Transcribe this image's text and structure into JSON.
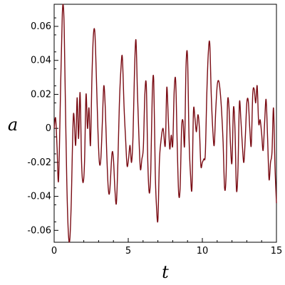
{
  "chart_data": {
    "type": "line",
    "title": "",
    "xlabel": "t",
    "ylabel": "a",
    "xlim": [
      0,
      15
    ],
    "ylim": [
      -0.067,
      0.073
    ],
    "grid": false,
    "legend": "none",
    "xticks": [
      0,
      5,
      10,
      15
    ],
    "xtick_labels": [
      "0",
      "5",
      "10",
      "15"
    ],
    "yticks": [
      -0.06,
      -0.04,
      -0.02,
      0,
      0.02,
      0.04,
      0.06
    ],
    "ytick_labels": [
      "-0.06",
      "-0.04",
      "-0.02",
      "0",
      "0.02",
      "0.04",
      "0.06"
    ],
    "series": [
      {
        "color": "#7a0c14",
        "x": [
          0,
          0.1,
          0.2,
          0.3,
          0.45,
          0.55,
          0.62,
          0.68,
          0.75,
          0.85,
          0.95,
          1.05,
          1.15,
          1.3,
          1.45,
          1.55,
          1.65,
          1.75,
          1.85,
          1.95,
          2.05,
          2.15,
          2.25,
          2.35,
          2.45,
          2.55,
          2.65,
          2.75,
          2.85,
          2.95,
          3.05,
          3.15,
          3.25,
          3.35,
          3.45,
          3.55,
          3.65,
          3.75,
          3.9,
          4.0,
          4.1,
          4.2,
          4.3,
          4.4,
          4.5,
          4.6,
          4.72,
          4.82,
          4.92,
          5.02,
          5.12,
          5.22,
          5.32,
          5.42,
          5.52,
          5.62,
          5.72,
          5.82,
          5.92,
          6.02,
          6.12,
          6.22,
          6.32,
          6.42,
          6.52,
          6.62,
          6.72,
          6.82,
          6.9,
          7.0,
          7.1,
          7.2,
          7.35,
          7.5,
          7.6,
          7.7,
          7.8,
          7.9,
          8.0,
          8.1,
          8.2,
          8.3,
          8.4,
          8.5,
          8.6,
          8.7,
          8.8,
          8.9,
          9.0,
          9.1,
          9.2,
          9.3,
          9.4,
          9.5,
          9.6,
          9.7,
          9.8,
          9.9,
          10.0,
          10.1,
          10.2,
          10.3,
          10.4,
          10.5,
          10.6,
          10.7,
          10.8,
          10.9,
          11.0,
          11.1,
          11.2,
          11.3,
          11.4,
          11.5,
          11.6,
          11.7,
          11.8,
          11.9,
          12.0,
          12.1,
          12.2,
          12.3,
          12.4,
          12.5,
          12.6,
          12.7,
          12.8,
          12.9,
          13.0,
          13.1,
          13.2,
          13.3,
          13.4,
          13.5,
          13.6,
          13.7,
          13.8,
          13.9,
          14.0,
          14.1,
          14.2,
          14.3,
          14.4,
          14.5,
          14.6,
          14.7,
          14.8,
          14.9,
          15.0
        ],
        "y": [
          0.0,
          0.006,
          -0.012,
          -0.03,
          0.03,
          0.067,
          0.072,
          0.058,
          0.02,
          -0.03,
          -0.06,
          -0.066,
          -0.045,
          0.008,
          -0.01,
          0.018,
          -0.006,
          0.021,
          -0.02,
          -0.032,
          -0.02,
          0.02,
          0.0,
          0.012,
          -0.01,
          0.03,
          0.055,
          0.056,
          0.03,
          0.0,
          -0.02,
          -0.018,
          0.003,
          0.025,
          0.012,
          -0.015,
          -0.035,
          -0.037,
          -0.015,
          -0.018,
          -0.036,
          -0.044,
          -0.02,
          0.014,
          0.034,
          0.042,
          0.012,
          -0.006,
          -0.022,
          -0.018,
          -0.01,
          -0.02,
          -0.005,
          0.033,
          0.052,
          0.021,
          -0.005,
          -0.024,
          -0.018,
          -0.011,
          0.02,
          0.025,
          -0.02,
          -0.038,
          -0.025,
          0.02,
          0.028,
          -0.025,
          -0.045,
          -0.054,
          -0.02,
          -0.008,
          -0.0,
          -0.01,
          0.024,
          0.006,
          -0.012,
          -0.004,
          -0.01,
          0.022,
          0.028,
          -0.008,
          -0.038,
          -0.035,
          0.0,
          0.004,
          -0.01,
          0.037,
          0.042,
          -0.005,
          -0.027,
          -0.035,
          0.01,
          0.006,
          -0.002,
          0.008,
          0.0,
          -0.022,
          -0.02,
          -0.018,
          -0.015,
          0.02,
          0.044,
          0.05,
          0.02,
          0.0,
          -0.01,
          0.01,
          0.025,
          0.028,
          0.022,
          0.01,
          -0.008,
          -0.035,
          -0.028,
          0.015,
          0.012,
          -0.01,
          -0.02,
          0.012,
          0.0,
          -0.036,
          -0.025,
          0.015,
          0.005,
          -0.01,
          -0.02,
          -0.005,
          0.015,
          0.016,
          0.0,
          -0.01,
          0.02,
          0.023,
          0.015,
          0.025,
          0.003,
          0.005,
          -0.003,
          -0.013,
          0.003,
          0.017,
          -0.005,
          -0.03,
          -0.02,
          -0.014,
          0.012,
          -0.022,
          -0.044
        ]
      }
    ]
  }
}
